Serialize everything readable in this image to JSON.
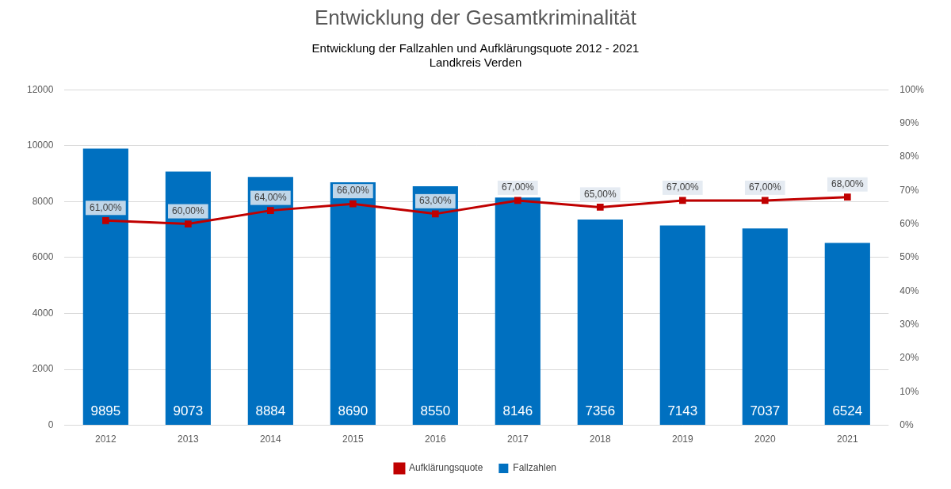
{
  "chart_data": {
    "type": "bar",
    "title": "Entwicklung der Gesamtkriminalität",
    "subtitle": [
      "Entwicklung der Fallzahlen und Aufklärungsquote 2012 - 2021",
      "Landkreis Verden"
    ],
    "categories": [
      "2012",
      "2013",
      "2014",
      "2015",
      "2016",
      "2017",
      "2018",
      "2019",
      "2020",
      "2021"
    ],
    "series": [
      {
        "name": "Fallzahlen",
        "type": "bar",
        "color": "#0070c0",
        "values": [
          9895,
          9073,
          8884,
          8690,
          8550,
          8146,
          7356,
          7143,
          7037,
          6524
        ]
      },
      {
        "name": "Aufklärungsquote",
        "type": "line",
        "color": "#c00000",
        "marker": "square",
        "axis": "y2",
        "values": [
          61,
          60,
          64,
          66,
          63,
          67,
          65,
          67,
          67,
          68
        ],
        "value_labels": [
          "61,00%",
          "60,00%",
          "64,00%",
          "66,00%",
          "63,00%",
          "67,00%",
          "65,00%",
          "67,00%",
          "67,00%",
          "68,00%"
        ]
      }
    ],
    "ylim": [
      0,
      12000
    ],
    "yticks": [
      0,
      2000,
      4000,
      6000,
      8000,
      10000,
      12000
    ],
    "y2lim": [
      0,
      100
    ],
    "y2ticks": [
      {
        "value": 0,
        "label": "0%"
      },
      {
        "value": 10,
        "label": "10%"
      },
      {
        "value": 20,
        "label": "20%"
      },
      {
        "value": 30,
        "label": "30%"
      },
      {
        "value": 40,
        "label": "40%"
      },
      {
        "value": 50,
        "label": "50%"
      },
      {
        "value": 60,
        "label": "60%"
      },
      {
        "value": 70,
        "label": "70%"
      },
      {
        "value": 80,
        "label": "80%"
      },
      {
        "value": 90,
        "label": "90%"
      },
      {
        "value": 100,
        "label": "100%"
      }
    ],
    "grid": true,
    "legend": "bottom",
    "data_labels": true
  }
}
